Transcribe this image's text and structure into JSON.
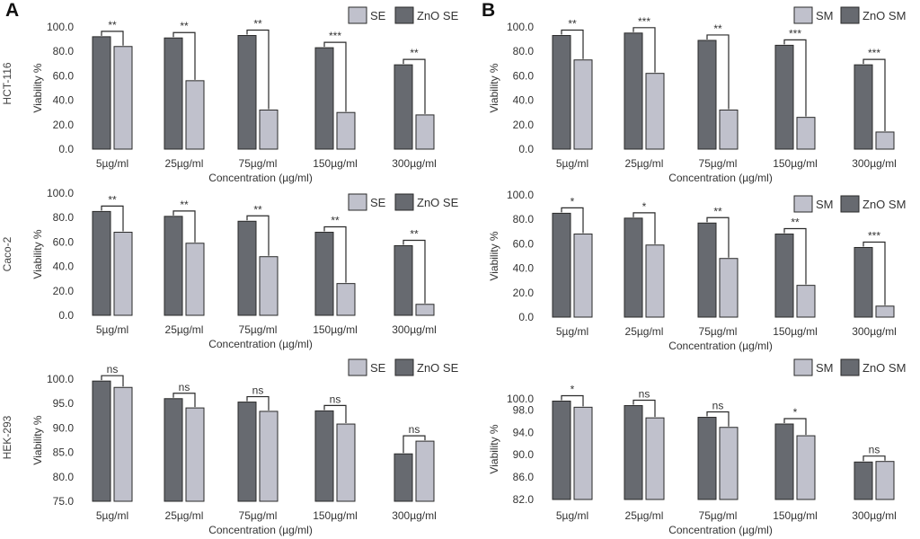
{
  "figure": {
    "panels": [
      {
        "letter": "A"
      },
      {
        "letter": "B"
      }
    ],
    "rows": [
      "HCT-116",
      "Caco-2",
      "HEK-293"
    ],
    "colors": {
      "dark": "#676a70",
      "light": "#c0c1cc",
      "stroke": "#2a2a2a"
    }
  },
  "chart_data": [
    {
      "type": "bar",
      "panel": "A",
      "cell_line": "HCT-116",
      "categories": [
        "5µg/ml",
        "25µg/ml",
        "75µg/ml",
        "150µg/ml",
        "300µg/ml"
      ],
      "series": [
        {
          "name": "ZnO SE",
          "values": [
            92,
            91,
            93,
            83,
            69
          ]
        },
        {
          "name": "SE",
          "values": [
            84,
            56,
            32,
            30,
            28
          ]
        }
      ],
      "legend_order": [
        "SE",
        "ZnO SE"
      ],
      "significance": [
        "**",
        "**",
        "**",
        "***",
        "**"
      ],
      "xlabel": "Concentration (µg/ml)",
      "ylabel": "Viability %",
      "ylim": [
        0,
        100
      ],
      "yticks": [
        0,
        20,
        40,
        60,
        80,
        100
      ],
      "tick_decimals": 1
    },
    {
      "type": "bar",
      "panel": "A",
      "cell_line": "Caco-2",
      "categories": [
        "5µg/ml",
        "25µg/ml",
        "75µg/ml",
        "150µg/ml",
        "300µg/ml"
      ],
      "series": [
        {
          "name": "ZnO SE",
          "values": [
            85,
            81,
            77,
            68,
            57
          ]
        },
        {
          "name": "SE",
          "values": [
            68,
            59,
            48,
            26,
            9
          ]
        }
      ],
      "legend_order": [
        "SE",
        "ZnO SE"
      ],
      "significance": [
        "**",
        "**",
        "**",
        "**",
        "**"
      ],
      "xlabel": "Concentration (µg/ml)",
      "ylabel": "Viability %",
      "ylim": [
        0,
        100
      ],
      "yticks": [
        0,
        20,
        40,
        60,
        80,
        100
      ],
      "tick_decimals": 1
    },
    {
      "type": "bar",
      "panel": "A",
      "cell_line": "HEK-293",
      "categories": [
        "5µg/ml",
        "25µg/ml",
        "75µg/ml",
        "150µg/ml",
        "300µg/ml"
      ],
      "series": [
        {
          "name": "ZnO SE",
          "values": [
            99.6,
            96,
            95.3,
            93.5,
            84.7
          ]
        },
        {
          "name": "SE",
          "values": [
            98.3,
            94.1,
            93.4,
            90.8,
            87.3
          ]
        }
      ],
      "legend_order": [
        "SE",
        "ZnO SE"
      ],
      "significance": [
        "ns",
        "ns",
        "ns",
        "ns",
        "ns"
      ],
      "xlabel": "Concentration (µg/ml)",
      "ylabel": "Viability %",
      "ylim": [
        75,
        100
      ],
      "yticks": [
        75,
        80,
        85,
        90,
        95,
        100
      ],
      "tick_decimals": 1
    },
    {
      "type": "bar",
      "panel": "B",
      "cell_line": "HCT-116",
      "categories": [
        "5µg/ml",
        "25µg/ml",
        "75µg/ml",
        "150µg/ml",
        "300µg/ml"
      ],
      "series": [
        {
          "name": "ZnO SM",
          "values": [
            93,
            95,
            89,
            85,
            69
          ]
        },
        {
          "name": "SM",
          "values": [
            73,
            62,
            32,
            26,
            14
          ]
        }
      ],
      "legend_order": [
        "SM",
        "ZnO SM"
      ],
      "significance": [
        "**",
        "***",
        "**",
        "***",
        "***"
      ],
      "xlabel": "Concentration (µg/ml)",
      "ylabel": "Viability %",
      "ylim": [
        0,
        100
      ],
      "yticks": [
        0,
        20,
        40,
        60,
        80,
        100
      ],
      "tick_decimals": 1
    },
    {
      "type": "bar",
      "panel": "B",
      "cell_line": "Caco-2",
      "categories": [
        "5µg/ml",
        "25µg/ml",
        "75µg/ml",
        "150µg/ml",
        "300µg/ml"
      ],
      "series": [
        {
          "name": "ZnO SM",
          "values": [
            85,
            81,
            77,
            68,
            57
          ]
        },
        {
          "name": "SM",
          "values": [
            68,
            59,
            48,
            26,
            9
          ]
        }
      ],
      "legend_order": [
        "SM",
        "ZnO SM"
      ],
      "significance": [
        "*",
        "*",
        "**",
        "**",
        "***"
      ],
      "xlabel": "Concentration (µg/ml)",
      "ylabel": "Viability %",
      "ylim": [
        0,
        100
      ],
      "yticks": [
        0,
        20,
        40,
        60,
        80,
        100
      ],
      "tick_decimals": 1
    },
    {
      "type": "bar",
      "panel": "B",
      "cell_line": "HEK-293",
      "categories": [
        "5µg/ml",
        "25µg/ml",
        "75µg/ml",
        "150µg/ml",
        "300µg/ml"
      ],
      "series": [
        {
          "name": "ZnO SM",
          "values": [
            99.6,
            98.8,
            96.7,
            95.5,
            88.7
          ]
        },
        {
          "name": "SM",
          "values": [
            98.5,
            96.6,
            94.9,
            93.4,
            88.8
          ]
        }
      ],
      "legend_order": [
        "SM",
        "ZnO SM"
      ],
      "significance": [
        "*",
        "ns",
        "ns",
        "*",
        "ns"
      ],
      "xlabel": "Concentration (µg/ml)",
      "ylabel": "Viability %",
      "ylim": [
        82,
        100
      ],
      "yticks": [
        82,
        86,
        90,
        94,
        98,
        100
      ],
      "tick_decimals": 1
    }
  ]
}
